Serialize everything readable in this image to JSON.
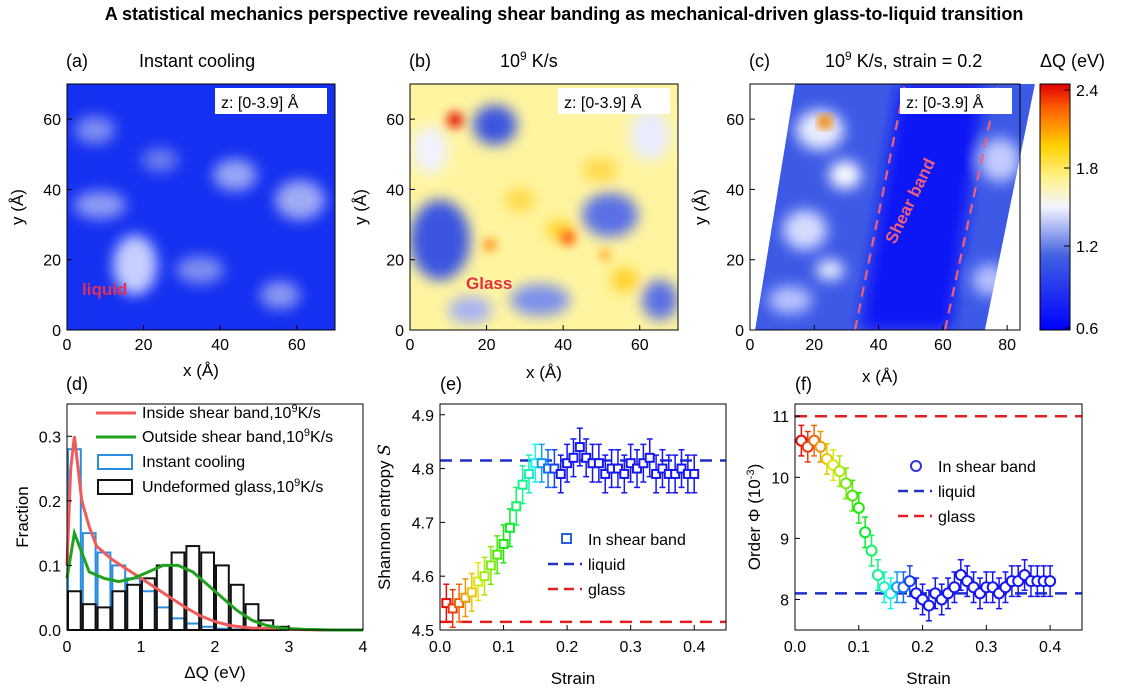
{
  "title": "A statistical mechanics perspective revealing shear banding as mechanical-driven glass-to-liquid transition",
  "maps": [
    {
      "panel": "(a)",
      "label": "Instant cooling",
      "zlabel": "z: [0-3.9] Å",
      "annotation": "liquid",
      "xlabel": "x (Å)",
      "ylabel": "y (Å)",
      "xticks": [
        "0",
        "20",
        "40",
        "60"
      ],
      "yticks": [
        "0",
        "20",
        "40",
        "60"
      ]
    },
    {
      "panel": "(b)",
      "label_base": "10",
      "label_exp": "9",
      "label_tail": " K/s",
      "zlabel": "z: [0-3.9] Å",
      "annotation": "Glass",
      "xlabel": "x (Å)",
      "ylabel": "y (Å)",
      "xticks": [
        "0",
        "20",
        "40",
        "60"
      ],
      "yticks": [
        "0",
        "20",
        "40",
        "60"
      ]
    },
    {
      "panel": "(c)",
      "label_base": "10",
      "label_exp": "9",
      "label_tail": " K/s, strain = 0.2",
      "zlabel": "z: [0-3.9] Å",
      "annotation": "Shear band",
      "xlabel": "x (Å)",
      "ylabel": "y (Å)",
      "xticks": [
        "0",
        "20",
        "40",
        "60",
        "80"
      ],
      "yticks": [
        "0",
        "20",
        "40",
        "60"
      ]
    }
  ],
  "colorbar": {
    "title": "ΔQ (eV)",
    "ticks": [
      "2.4",
      "1.8",
      "1.2",
      "0.6"
    ]
  },
  "chart_data": [
    {
      "panel": "(d)",
      "type": "bar",
      "xlabel": "ΔQ (eV)",
      "ylabel": "Fraction",
      "xlim": [
        0,
        4
      ],
      "ylim": [
        0,
        0.35
      ],
      "xticks": [
        "0",
        "1",
        "2",
        "3",
        "4"
      ],
      "yticks": [
        "0.0",
        "0.1",
        "0.2",
        "0.3"
      ],
      "bin_centers": [
        0.1,
        0.3,
        0.5,
        0.7,
        0.9,
        1.1,
        1.3,
        1.5,
        1.7,
        1.9,
        2.1,
        2.3,
        2.5,
        2.7,
        2.9
      ],
      "bar_series": [
        {
          "name": "Instant cooling",
          "values": [
            0.28,
            0.15,
            0.12,
            0.1,
            0.08,
            0.06,
            0.035,
            0.018,
            0.01,
            0.005,
            0.002,
            0.001,
            0,
            0,
            0
          ]
        },
        {
          "name": "Undeformed glass,10^9K/s",
          "values": [
            0.06,
            0.04,
            0.035,
            0.06,
            0.07,
            0.08,
            0.1,
            0.12,
            0.13,
            0.12,
            0.1,
            0.07,
            0.04,
            0.015,
            0.005
          ]
        }
      ],
      "line_series": [
        {
          "name": "Inside shear band,10^9K/s",
          "x": [
            0.0,
            0.05,
            0.1,
            0.15,
            0.2,
            0.3,
            0.4,
            0.6,
            0.8,
            1.0,
            1.2,
            1.4,
            1.6,
            1.8,
            2.0,
            2.2,
            2.5,
            3.0,
            3.5,
            4.0
          ],
          "y": [
            0.1,
            0.25,
            0.3,
            0.25,
            0.2,
            0.16,
            0.13,
            0.11,
            0.095,
            0.08,
            0.065,
            0.05,
            0.035,
            0.022,
            0.013,
            0.007,
            0.003,
            0.001,
            0,
            0
          ]
        },
        {
          "name": "Outside shear band,10^9K/s",
          "x": [
            0.0,
            0.1,
            0.2,
            0.3,
            0.5,
            0.7,
            0.9,
            1.1,
            1.3,
            1.5,
            1.7,
            1.9,
            2.1,
            2.3,
            2.5,
            2.7,
            2.9,
            3.2,
            3.6,
            4.0
          ],
          "y": [
            0.08,
            0.15,
            0.12,
            0.09,
            0.08,
            0.075,
            0.08,
            0.09,
            0.1,
            0.1,
            0.09,
            0.07,
            0.05,
            0.03,
            0.015,
            0.007,
            0.003,
            0.001,
            0,
            0
          ]
        }
      ],
      "legend": [
        "Inside shear band,10^9K/s",
        "Outside shear band,10^9K/s",
        "Instant cooling",
        "Undeformed glass,10^9K/s"
      ],
      "colors": {
        "inside": "#f05a5a",
        "outside": "#1fa31f",
        "instant": "#2a8ee0",
        "undeformed": "#111111"
      }
    },
    {
      "panel": "(e)",
      "type": "scatter",
      "xlabel": "Strain",
      "ylabel": "Shannon entropy S",
      "xlim": [
        0,
        0.45
      ],
      "ylim": [
        4.5,
        4.92
      ],
      "xticks": [
        "0.0",
        "0.1",
        "0.2",
        "0.3",
        "0.4"
      ],
      "yticks": [
        "4.5",
        "4.6",
        "4.7",
        "4.8",
        "4.9"
      ],
      "hlines": [
        {
          "name": "liquid",
          "y": 4.815,
          "color": "#1f2fc8"
        },
        {
          "name": "glass",
          "y": 4.515,
          "color": "#e02020"
        }
      ],
      "legend": [
        "In shear band",
        "liquid",
        "glass"
      ],
      "series": [
        {
          "name": "In shear band",
          "x": [
            0.01,
            0.02,
            0.03,
            0.04,
            0.05,
            0.06,
            0.07,
            0.08,
            0.09,
            0.1,
            0.11,
            0.12,
            0.13,
            0.14,
            0.15,
            0.16,
            0.17,
            0.18,
            0.19,
            0.2,
            0.21,
            0.22,
            0.23,
            0.24,
            0.25,
            0.26,
            0.27,
            0.28,
            0.29,
            0.3,
            0.31,
            0.32,
            0.33,
            0.34,
            0.35,
            0.36,
            0.37,
            0.38,
            0.39,
            0.4
          ],
          "y": [
            4.55,
            4.54,
            4.55,
            4.56,
            4.57,
            4.59,
            4.6,
            4.62,
            4.64,
            4.66,
            4.69,
            4.73,
            4.77,
            4.79,
            4.81,
            4.81,
            4.8,
            4.8,
            4.79,
            4.81,
            4.82,
            4.84,
            4.82,
            4.81,
            4.81,
            4.79,
            4.8,
            4.8,
            4.79,
            4.81,
            4.8,
            4.81,
            4.82,
            4.79,
            4.8,
            4.79,
            4.79,
            4.8,
            4.79,
            4.79
          ],
          "err": 0.035
        }
      ]
    },
    {
      "panel": "(f)",
      "type": "scatter",
      "xlabel": "Strain",
      "ylabel": "Order Φ (10^-3)",
      "xlim": [
        0,
        0.45
      ],
      "ylim": [
        7.5,
        11.2
      ],
      "xticks": [
        "0.0",
        "0.1",
        "0.2",
        "0.3",
        "0.4"
      ],
      "yticks": [
        "8",
        "9",
        "10",
        "11"
      ],
      "hlines": [
        {
          "name": "liquid",
          "y": 8.1,
          "color": "#1f2fc8"
        },
        {
          "name": "glass",
          "y": 11.0,
          "color": "#e02020"
        }
      ],
      "legend": [
        "In shear band",
        "liquid",
        "glass"
      ],
      "series": [
        {
          "name": "In shear band",
          "x": [
            0.01,
            0.02,
            0.03,
            0.04,
            0.05,
            0.06,
            0.07,
            0.08,
            0.09,
            0.1,
            0.11,
            0.12,
            0.13,
            0.14,
            0.15,
            0.16,
            0.17,
            0.18,
            0.19,
            0.2,
            0.21,
            0.22,
            0.23,
            0.24,
            0.25,
            0.26,
            0.27,
            0.28,
            0.29,
            0.3,
            0.31,
            0.32,
            0.33,
            0.34,
            0.35,
            0.36,
            0.37,
            0.38,
            0.39,
            0.4
          ],
          "y": [
            10.6,
            10.5,
            10.6,
            10.5,
            10.3,
            10.2,
            10.1,
            9.9,
            9.7,
            9.5,
            9.1,
            8.8,
            8.4,
            8.2,
            8.1,
            8.2,
            8.2,
            8.3,
            8.1,
            8.0,
            7.9,
            8.1,
            8.0,
            8.1,
            8.2,
            8.4,
            8.3,
            8.2,
            8.1,
            8.2,
            8.2,
            8.1,
            8.2,
            8.3,
            8.3,
            8.4,
            8.3,
            8.3,
            8.3,
            8.3
          ],
          "err": 0.25
        }
      ]
    }
  ]
}
